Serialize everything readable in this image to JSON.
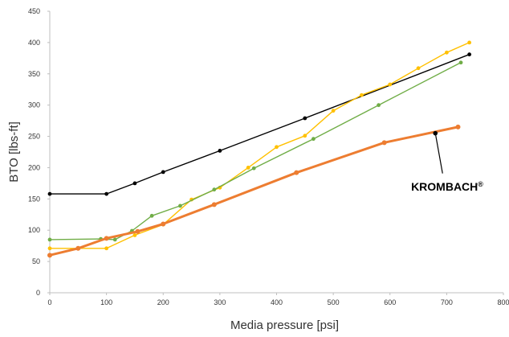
{
  "chart_data": {
    "type": "line",
    "xlabel": "Media pressure [psi]",
    "ylabel": "BTO [lbs-ft]",
    "xlim": [
      0,
      800
    ],
    "ylim": [
      0,
      450
    ],
    "x_ticks": [
      "0",
      "100",
      "200",
      "300",
      "400",
      "500",
      "600",
      "700",
      "800"
    ],
    "y_ticks": [
      "0",
      "50",
      "100",
      "150",
      "200",
      "250",
      "300",
      "350",
      "400",
      "450"
    ],
    "grid": false,
    "legend": "none",
    "annotation": {
      "text": "KROMBACH",
      "mark": "®",
      "points_to_series": "orange",
      "at": [
        680,
        255
      ]
    },
    "series": [
      {
        "color": "#000000",
        "key": "black",
        "stroke": 1.4,
        "points": [
          [
            0,
            158
          ],
          [
            100,
            158
          ],
          [
            150,
            175
          ],
          [
            200,
            193
          ],
          [
            300,
            227
          ],
          [
            450,
            279
          ],
          [
            740,
            381
          ]
        ]
      },
      {
        "color": "#FFC000",
        "key": "yellow",
        "stroke": 1.4,
        "points": [
          [
            0,
            71
          ],
          [
            50,
            71
          ],
          [
            100,
            71
          ],
          [
            150,
            92
          ],
          [
            200,
            109
          ],
          [
            250,
            149
          ],
          [
            300,
            168
          ],
          [
            350,
            200
          ],
          [
            400,
            233
          ],
          [
            450,
            251
          ],
          [
            500,
            291
          ],
          [
            550,
            316
          ],
          [
            600,
            333
          ],
          [
            650,
            359
          ],
          [
            700,
            384
          ],
          [
            740,
            400
          ]
        ]
      },
      {
        "color": "#70AD47",
        "key": "green",
        "stroke": 1.4,
        "points": [
          [
            0,
            85
          ],
          [
            90,
            86
          ],
          [
            115,
            85
          ],
          [
            145,
            99
          ],
          [
            180,
            123
          ],
          [
            230,
            139
          ],
          [
            290,
            165
          ],
          [
            360,
            199
          ],
          [
            465,
            246
          ],
          [
            580,
            300
          ],
          [
            725,
            368
          ]
        ]
      },
      {
        "color": "#ED7D31",
        "key": "orange",
        "stroke": 3,
        "points": [
          [
            0,
            60
          ],
          [
            50,
            71
          ],
          [
            100,
            87
          ],
          [
            155,
            98
          ],
          [
            200,
            110
          ],
          [
            290,
            141
          ],
          [
            435,
            192
          ],
          [
            590,
            240
          ],
          [
            720,
            265
          ]
        ]
      }
    ]
  }
}
